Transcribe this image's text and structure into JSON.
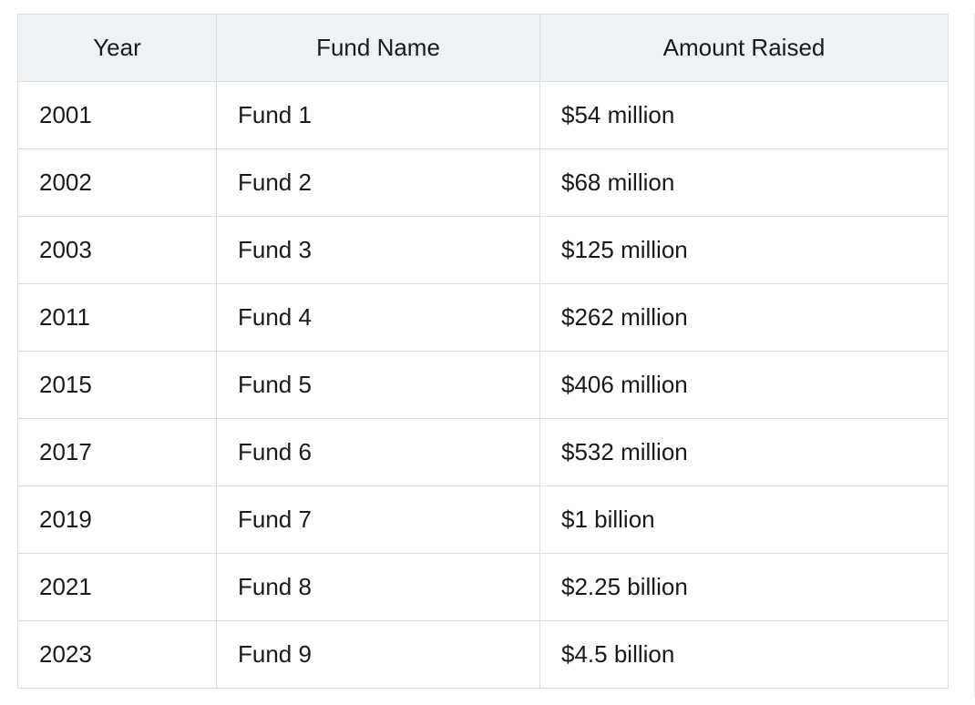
{
  "table": {
    "headers": [
      "Year",
      "Fund Name",
      "Amount Raised"
    ],
    "rows": [
      [
        "2001",
        "Fund 1",
        "$54 million"
      ],
      [
        "2002",
        "Fund 2",
        "$68 million"
      ],
      [
        "2003",
        "Fund 3",
        "$125 million"
      ],
      [
        "2011",
        "Fund 4",
        "$262 million"
      ],
      [
        "2015",
        "Fund 5",
        "$406 million"
      ],
      [
        "2017",
        "Fund 6",
        "$532 million"
      ],
      [
        "2019",
        "Fund 7",
        "$1 billion"
      ],
      [
        "2021",
        "Fund 8",
        "$2.25 billion"
      ],
      [
        "2023",
        "Fund 9",
        "$4.5 billion"
      ]
    ]
  }
}
